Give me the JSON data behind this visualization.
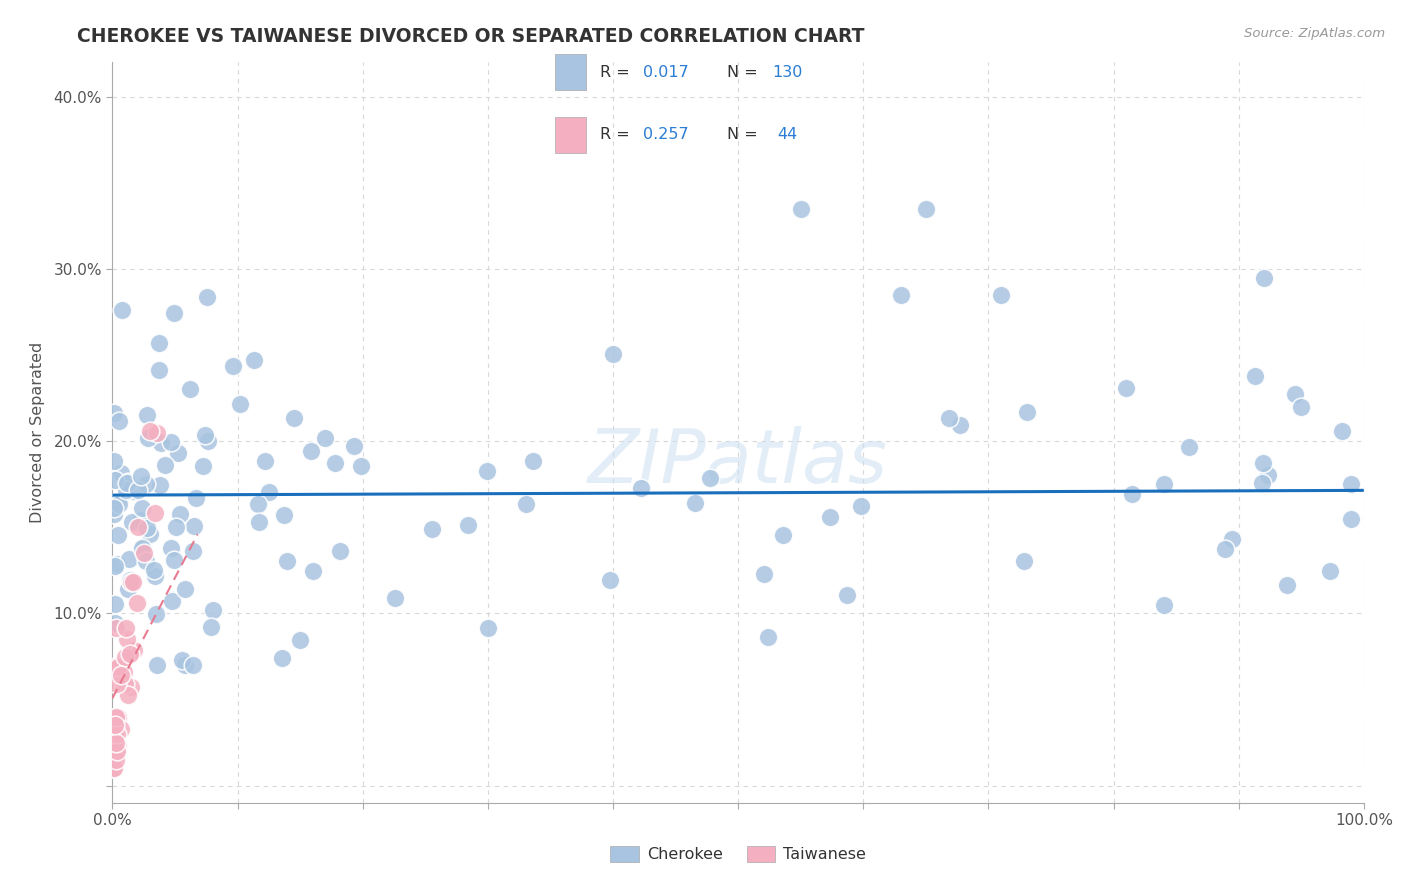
{
  "title": "CHEROKEE VS TAIWANESE DIVORCED OR SEPARATED CORRELATION CHART",
  "source_text": "Source: ZipAtlas.com",
  "ylabel": "Divorced or Separated",
  "xlim": [
    0,
    1.0
  ],
  "ylim": [
    -0.01,
    0.42
  ],
  "x_ticks": [
    0.0,
    0.1,
    0.2,
    0.3,
    0.4,
    0.5,
    0.6,
    0.7,
    0.8,
    0.9,
    1.0
  ],
  "x_tick_labels": [
    "0.0%",
    "",
    "",
    "",
    "",
    "",
    "",
    "",
    "",
    "",
    "100.0%"
  ],
  "y_ticks": [
    0.0,
    0.1,
    0.2,
    0.3,
    0.4
  ],
  "y_tick_labels": [
    "",
    "10.0%",
    "20.0%",
    "30.0%",
    "40.0%"
  ],
  "legend_R1": "0.017",
  "legend_N1": "130",
  "legend_R2": "0.257",
  "legend_N2": "44",
  "cherokee_color": "#a8c4e0",
  "taiwanese_color": "#f4afc0",
  "regression_line1_color": "#1a6fbd",
  "regression_line2_color": "#e87a90",
  "watermark": "ZIPatlas",
  "background_color": "#ffffff",
  "grid_color": "#d8d8d8",
  "title_color": "#333333",
  "label_color": "#555555",
  "blue_text_color": "#2b7cd3"
}
